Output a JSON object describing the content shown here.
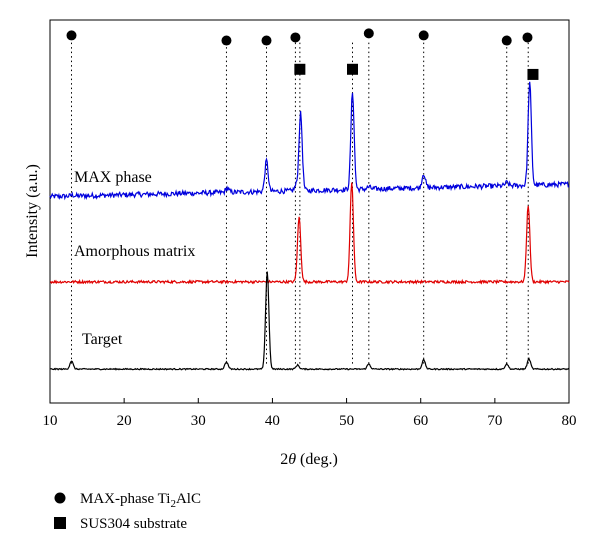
{
  "chart_data": {
    "type": "line",
    "xlabel_prefix": "2",
    "xlabel_theta": "θ",
    "xlabel_suffix": " (deg.)",
    "ylabel": "Intensity (a.u.)",
    "xlim": [
      10,
      80
    ],
    "x_ticks": [
      "10",
      "20",
      "30",
      "40",
      "50",
      "60",
      "70",
      "80"
    ],
    "grid": false,
    "series": [
      {
        "name": "MAX phase",
        "color": "#0000dd",
        "baseline_start": 0.43,
        "baseline_end": 0.55,
        "peaks": [
          [
            13.0,
            0.01
          ],
          [
            33.9,
            0.04
          ],
          [
            39.2,
            0.3
          ],
          [
            43.2,
            0.05
          ],
          [
            43.8,
            0.75
          ],
          [
            50.8,
            0.95
          ],
          [
            53.0,
            0.02
          ],
          [
            60.4,
            0.14
          ],
          [
            71.6,
            0.03
          ],
          [
            74.7,
            1.0
          ]
        ]
      },
      {
        "name": "Amorphous matrix",
        "color": "#e00000",
        "baseline_start": -0.4,
        "baseline_end": -0.4,
        "peaks": [
          [
            43.6,
            0.63
          ],
          [
            50.7,
            0.97
          ],
          [
            74.5,
            0.75
          ]
        ]
      },
      {
        "name": "Target",
        "color": "#000000",
        "baseline_start": -1.25,
        "baseline_end": -1.25,
        "peaks": [
          [
            12.9,
            0.08
          ],
          [
            33.8,
            0.07
          ],
          [
            39.3,
            0.95
          ],
          [
            43.4,
            0.04
          ],
          [
            53.0,
            0.05
          ],
          [
            60.4,
            0.09
          ],
          [
            71.6,
            0.05
          ],
          [
            74.6,
            0.1
          ]
        ]
      }
    ],
    "markers": [
      {
        "type": "circle",
        "x": 12.9
      },
      {
        "type": "circle",
        "x": 33.8
      },
      {
        "type": "circle",
        "x": 39.2
      },
      {
        "type": "circle",
        "x": 43.1
      },
      {
        "type": "circle",
        "x": 53.0
      },
      {
        "type": "circle",
        "x": 60.4
      },
      {
        "type": "circle",
        "x": 71.6
      },
      {
        "type": "circle",
        "x": 74.4
      },
      {
        "type": "square",
        "x": 43.7
      },
      {
        "type": "square",
        "x": 50.8
      },
      {
        "type": "square",
        "x": 74.6
      }
    ],
    "dotted_lines_x": [
      12.9,
      33.8,
      39.2,
      43.1,
      43.7,
      50.8,
      53.0,
      60.4,
      71.6,
      74.5
    ],
    "legend": [
      {
        "marker": "circle",
        "text_main": "MAX-phase Ti",
        "text_sub": "2",
        "text_tail": "AlC"
      },
      {
        "marker": "square",
        "text_main": "SUS304 substrate"
      }
    ]
  }
}
